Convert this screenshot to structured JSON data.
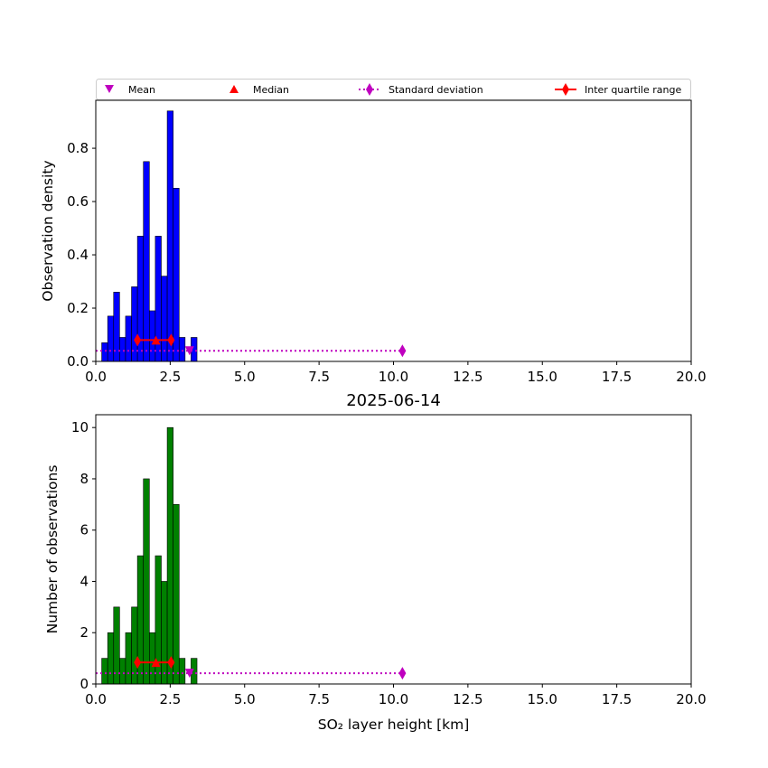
{
  "colors": {
    "density_bars": "#0000ff",
    "count_bars": "#008000",
    "bar_edge": "#000000",
    "mean_marker": "#bf00bf",
    "median_marker": "#ff0000",
    "std_marker": "#bf00bf",
    "iqr_marker": "#ff0000"
  },
  "legend": {
    "placement": "top, spanning full width above top plot",
    "items": [
      {
        "label": "Mean",
        "marker": "triangle-down",
        "color": "#bf00bf"
      },
      {
        "label": "Median",
        "marker": "triangle-up",
        "color": "#ff0000"
      },
      {
        "label": "Standard deviation",
        "marker": "thin-diamond-dotted-line",
        "color": "#bf00bf"
      },
      {
        "label": "Inter quartile range",
        "marker": "thin-diamond-solid-line",
        "color": "#ff0000"
      }
    ]
  },
  "chart_data": [
    {
      "type": "bar",
      "subtype": "histogram",
      "title": "",
      "xlabel": "",
      "ylabel": "Observation density",
      "xlim": [
        0,
        20
      ],
      "ylim": [
        0,
        0.98
      ],
      "xticks": [
        "0.0",
        "2.5",
        "5.0",
        "7.5",
        "10.0",
        "12.5",
        "15.0",
        "17.5",
        "20.0"
      ],
      "yticks": [
        "0.0",
        "0.2",
        "0.4",
        "0.6",
        "0.8"
      ],
      "grid": false,
      "bin_width": 0.2,
      "bins": [
        {
          "x0": 0.2,
          "value": 0.07
        },
        {
          "x0": 0.4,
          "value": 0.17
        },
        {
          "x0": 0.6,
          "value": 0.26
        },
        {
          "x0": 0.8,
          "value": 0.09
        },
        {
          "x0": 1.0,
          "value": 0.17
        },
        {
          "x0": 1.2,
          "value": 0.28
        },
        {
          "x0": 1.4,
          "value": 0.47
        },
        {
          "x0": 1.6,
          "value": 0.75
        },
        {
          "x0": 1.8,
          "value": 0.19
        },
        {
          "x0": 2.0,
          "value": 0.47
        },
        {
          "x0": 2.2,
          "value": 0.32
        },
        {
          "x0": 2.4,
          "value": 0.94
        },
        {
          "x0": 2.6,
          "value": 0.65
        },
        {
          "x0": 2.8,
          "value": 0.09
        },
        {
          "x0": 3.2,
          "value": 0.09
        }
      ],
      "stats": {
        "mean": {
          "x": 3.15,
          "y": 0.04
        },
        "median": {
          "x": 2.02,
          "y": 0.08
        },
        "iqr": {
          "x_low": 1.4,
          "x_high": 2.53,
          "y": 0.08
        },
        "std": {
          "x_start": 0.0,
          "x_end": 10.3,
          "y": 0.04
        }
      }
    },
    {
      "type": "bar",
      "subtype": "histogram",
      "title": "2025-06-14",
      "xlabel": "SO₂ layer height [km]",
      "ylabel": "Number of observations",
      "xlim": [
        0,
        20
      ],
      "ylim": [
        0,
        10.5
      ],
      "xticks": [
        "0.0",
        "2.5",
        "5.0",
        "7.5",
        "10.0",
        "12.5",
        "15.0",
        "17.5",
        "20.0"
      ],
      "yticks": [
        "0",
        "2",
        "4",
        "6",
        "8",
        "10"
      ],
      "grid": false,
      "bin_width": 0.2,
      "bins": [
        {
          "x0": 0.2,
          "value": 1
        },
        {
          "x0": 0.4,
          "value": 2
        },
        {
          "x0": 0.6,
          "value": 3
        },
        {
          "x0": 0.8,
          "value": 1
        },
        {
          "x0": 1.0,
          "value": 2
        },
        {
          "x0": 1.2,
          "value": 3
        },
        {
          "x0": 1.4,
          "value": 5
        },
        {
          "x0": 1.6,
          "value": 8
        },
        {
          "x0": 1.8,
          "value": 2
        },
        {
          "x0": 2.0,
          "value": 5
        },
        {
          "x0": 2.2,
          "value": 4
        },
        {
          "x0": 2.4,
          "value": 10
        },
        {
          "x0": 2.6,
          "value": 7
        },
        {
          "x0": 2.8,
          "value": 1
        },
        {
          "x0": 3.2,
          "value": 1
        }
      ],
      "stats": {
        "mean": {
          "x": 3.15,
          "y": 0.42
        },
        "median": {
          "x": 2.02,
          "y": 0.84
        },
        "iqr": {
          "x_low": 1.4,
          "x_high": 2.53,
          "y": 0.84
        },
        "std": {
          "x_start": 0.0,
          "x_end": 10.3,
          "y": 0.42
        }
      }
    }
  ]
}
